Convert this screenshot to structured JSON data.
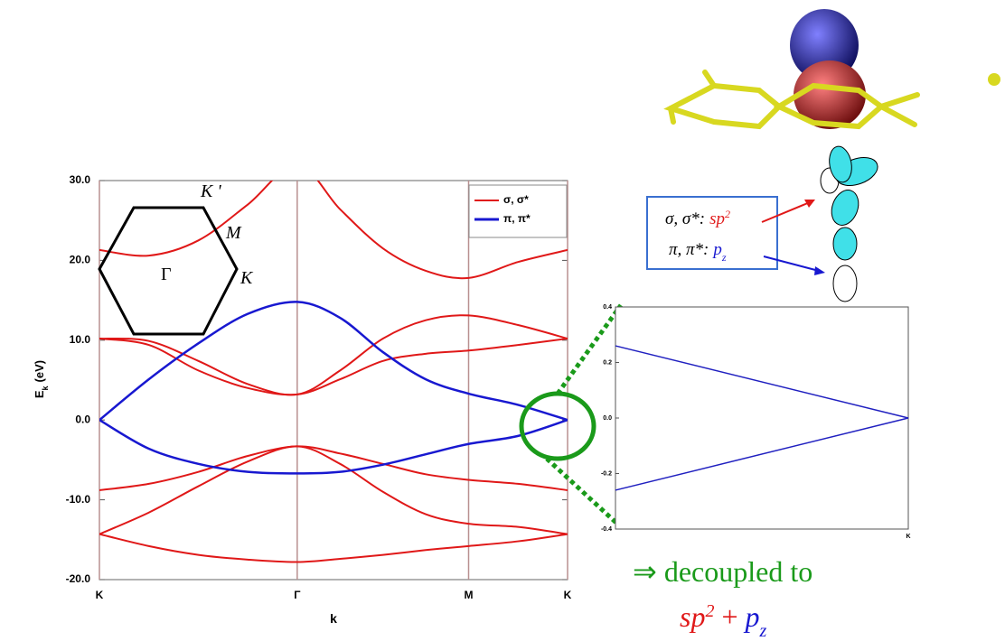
{
  "chart_data": [
    {
      "type": "line",
      "x": [
        0,
        0.333,
        0.667,
        1.0,
        1.333,
        1.622,
        1.911,
        2.199,
        2.488,
        2.821,
        3.155
      ],
      "xlim": [
        0,
        3.155
      ],
      "xticks": [
        {
          "value": 0,
          "label": "K"
        },
        {
          "value": 1.333,
          "label": "Γ"
        },
        {
          "value": 2.488,
          "label": "M"
        },
        {
          "value": 3.155,
          "label": "K"
        }
      ],
      "ylim": [
        -20,
        30
      ],
      "yticks": [
        {
          "value": 30,
          "label": "30.0"
        },
        {
          "value": 20,
          "label": "20.0"
        },
        {
          "value": 10,
          "label": "10.0"
        },
        {
          "value": 0,
          "label": "0.0"
        },
        {
          "value": -10,
          "label": "-10.0"
        },
        {
          "value": -20,
          "label": "-20.0"
        }
      ],
      "x_label": "k",
      "y_label": {
        "main": "E",
        "sub": "k",
        "unit": "(eV)"
      },
      "legend": "upper right",
      "series": [
        {
          "name": "σ, σ*",
          "color": "#e01818",
          "bands": [
            [
              21.3,
              20.6,
              22.5,
              27.0,
              32.0,
              26.4,
              21.5,
              18.7,
              17.8,
              19.8,
              21.3
            ],
            [
              10.2,
              9.9,
              7.4,
              4.5,
              3.2,
              6.2,
              10.2,
              12.5,
              13.1,
              11.9,
              10.2
            ],
            [
              10.2,
              9.4,
              6.2,
              4.0,
              3.2,
              5.1,
              7.4,
              8.3,
              8.7,
              9.4,
              10.2
            ],
            [
              -8.8,
              -8.0,
              -6.5,
              -4.5,
              -3.3,
              -4.2,
              -5.5,
              -6.8,
              -7.5,
              -8.0,
              -8.8
            ],
            [
              -14.3,
              -11.6,
              -8.3,
              -5.2,
              -3.3,
              -5.5,
              -9.0,
              -11.8,
              -13.0,
              -13.4,
              -14.3
            ],
            [
              -14.3,
              -15.8,
              -16.9,
              -17.5,
              -17.8,
              -17.4,
              -16.9,
              -16.3,
              -15.8,
              -15.2,
              -14.3
            ]
          ]
        },
        {
          "name": "π, π*",
          "color": "#1818d0",
          "bands": [
            [
              0,
              5.1,
              9.6,
              13.3,
              14.8,
              12.8,
              8.5,
              5.1,
              3.3,
              1.9,
              0
            ],
            [
              0,
              -3.6,
              -5.5,
              -6.5,
              -6.7,
              -6.5,
              -5.6,
              -4.3,
              -3.0,
              -2.0,
              0
            ]
          ]
        }
      ],
      "inset_labels": [
        "K '",
        "M",
        "Γ",
        "K"
      ]
    },
    {
      "type": "line",
      "x": [
        0,
        1
      ],
      "xlim": [
        0,
        1
      ],
      "xticks": [
        {
          "value": 1,
          "label": "K"
        }
      ],
      "ylim": [
        -0.4,
        0.4
      ],
      "yticks": [
        {
          "value": 0.4,
          "label": "0.4"
        },
        {
          "value": 0.2,
          "label": "0.2"
        },
        {
          "value": 0,
          "label": "0.0"
        },
        {
          "value": -0.2,
          "label": "-0.2"
        },
        {
          "value": -0.4,
          "label": "-0.4"
        }
      ],
      "series": [
        {
          "color": "#2020c0",
          "values": [
            0.26,
            0
          ]
        },
        {
          "color": "#2020c0",
          "values": [
            -0.26,
            0
          ]
        }
      ]
    }
  ],
  "orbital_box": [
    {
      "label": "σ, σ*:",
      "orbital": "sp",
      "index": "2"
    },
    {
      "label": "π, π*:",
      "orbital": "p",
      "index": "z"
    }
  ],
  "conclusion": {
    "text": "⇒ decoupled to",
    "a": "sp",
    "a_sup": "2",
    "plus": "+",
    "b": "p",
    "b_sub": "z"
  }
}
